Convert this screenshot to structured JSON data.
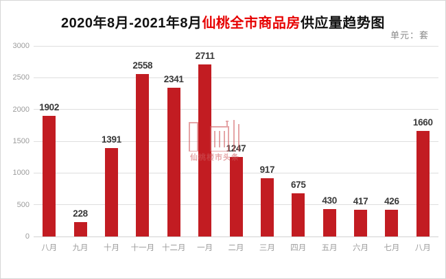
{
  "title": {
    "part1_black": "2020年8月-2021年8月",
    "part2_red": "仙桃全市商品房",
    "part3_black": "供应量趋势图"
  },
  "unit_label": "单元：套",
  "watermark": {
    "text": "仙桃楼市头条"
  },
  "chart_data": {
    "type": "bar",
    "title": "2020年8月-2021年8月仙桃全市商品房供应量趋势图",
    "unit": "单元：套",
    "categories": [
      "八月",
      "九月",
      "十月",
      "十一月",
      "十二月",
      "一月",
      "二月",
      "三月",
      "四月",
      "五月",
      "六月",
      "七月",
      "八月"
    ],
    "values": [
      1902,
      228,
      1391,
      2558,
      2341,
      2711,
      1247,
      917,
      675,
      430,
      417,
      426,
      1660
    ],
    "xlabel": "",
    "ylabel": "",
    "ylim": [
      0,
      3000
    ],
    "yticks": [
      0,
      500,
      1000,
      1500,
      2000,
      2500,
      3000
    ],
    "grid": true,
    "legend": false,
    "bar_color": "#c21c22",
    "value_label_color": "#383838",
    "axis_label_color": "#9b9b9b",
    "gridline_color": "#dedede",
    "title_red_color": "#e60000",
    "watermark_color": "#d05a5e"
  }
}
